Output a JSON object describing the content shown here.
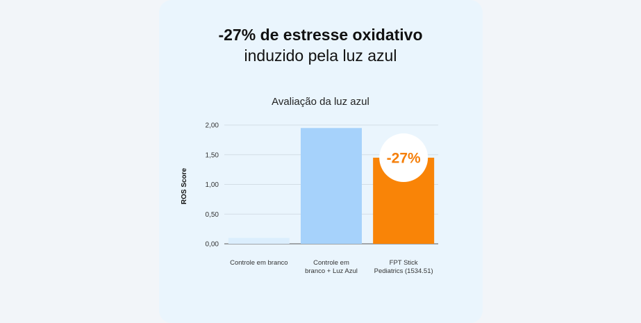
{
  "headline": {
    "line1": "-27% de estresse oxidativo",
    "line2": "induzido pela luz azul"
  },
  "chart_data": {
    "type": "bar",
    "title": "Avaliação da luz azul",
    "ylabel": "ROS Score",
    "xlabel": "",
    "ylim": [
      0,
      2.0
    ],
    "yticks": [
      "0,00",
      "0,50",
      "1,00",
      "1,50",
      "2,00"
    ],
    "grid": true,
    "categories": [
      [
        "Controle em branco"
      ],
      [
        "Controle em",
        "branco + Luz Azul"
      ],
      [
        "FPT Stick",
        "Pediatrics (1534.51)"
      ]
    ],
    "values": [
      0.1,
      1.95,
      1.45
    ],
    "colors": [
      "#dbeefd",
      "#a6d2fb",
      "#f98407"
    ],
    "annotation": {
      "text": "-27%",
      "bar_index": 2
    }
  }
}
